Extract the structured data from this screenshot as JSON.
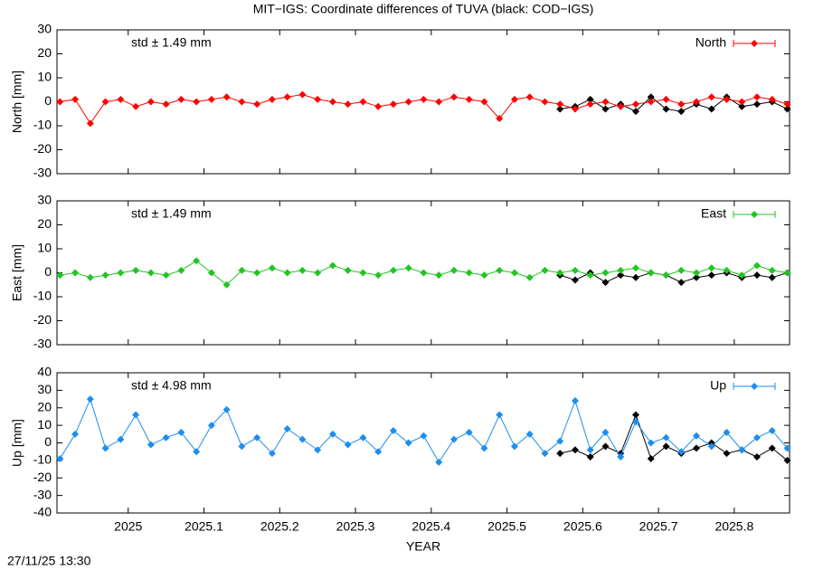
{
  "title": "MIT−IGS: Coordinate differences of TUVA (black: COD−IGS)",
  "timestamp": "27/11/25 13:30",
  "chart_data": [
    {
      "type": "line",
      "ylabel": "North [mm]",
      "annotation": "std ± 1.49 mm",
      "xlim": [
        2024.906,
        2025.873
      ],
      "xticks": [
        2025,
        2025.1,
        2025.2,
        2025.3,
        2025.4,
        2025.5,
        2025.6,
        2025.7,
        2025.8
      ],
      "ylim": [
        -30,
        30
      ],
      "yticks": [
        -30,
        -20,
        -10,
        0,
        10,
        20,
        30
      ],
      "legend": "top right",
      "series": [
        {
          "color": "#000000",
          "x": [
            2025.57,
            2025.59,
            2025.61,
            2025.63,
            2025.65,
            2025.67,
            2025.69,
            2025.71,
            2025.73,
            2025.75,
            2025.77,
            2025.79,
            2025.81,
            2025.83,
            2025.85,
            2025.87
          ],
          "values": [
            -3,
            -2,
            1,
            -3,
            -1,
            -4,
            2,
            -3,
            -4,
            -1,
            -3,
            2,
            -2,
            -1,
            0,
            -3
          ]
        },
        {
          "name": "North",
          "color": "#ff0000",
          "x": [
            2024.91,
            2024.93,
            2024.95,
            2024.97,
            2024.99,
            2025.01,
            2025.03,
            2025.05,
            2025.07,
            2025.09,
            2025.11,
            2025.13,
            2025.15,
            2025.17,
            2025.19,
            2025.21,
            2025.23,
            2025.25,
            2025.27,
            2025.29,
            2025.31,
            2025.33,
            2025.35,
            2025.37,
            2025.39,
            2025.41,
            2025.43,
            2025.45,
            2025.47,
            2025.49,
            2025.51,
            2025.53,
            2025.55,
            2025.57,
            2025.59,
            2025.61,
            2025.63,
            2025.65,
            2025.67,
            2025.69,
            2025.71,
            2025.73,
            2025.75,
            2025.77,
            2025.79,
            2025.81,
            2025.83,
            2025.85,
            2025.87
          ],
          "values": [
            0,
            1,
            -9,
            0,
            1,
            -2,
            0,
            -1,
            1,
            0,
            1,
            2,
            0,
            -1,
            1,
            2,
            3,
            1,
            0,
            -1,
            0,
            -2,
            -1,
            0,
            1,
            0,
            2,
            1,
            0,
            -7,
            1,
            2,
            0,
            -1,
            -3,
            -1,
            0,
            -2,
            -1,
            0,
            1,
            -1,
            0,
            2,
            1,
            0,
            2,
            1,
            -1
          ]
        }
      ]
    },
    {
      "type": "line",
      "ylabel": "East [mm]",
      "annotation": "std ± 1.49 mm",
      "xlim": [
        2024.906,
        2025.873
      ],
      "xticks": [
        2025,
        2025.1,
        2025.2,
        2025.3,
        2025.4,
        2025.5,
        2025.6,
        2025.7,
        2025.8
      ],
      "ylim": [
        -30,
        30
      ],
      "yticks": [
        -30,
        -20,
        -10,
        0,
        10,
        20,
        30
      ],
      "legend": "top right",
      "series": [
        {
          "color": "#000000",
          "x": [
            2025.57,
            2025.59,
            2025.61,
            2025.63,
            2025.65,
            2025.67,
            2025.69,
            2025.71,
            2025.73,
            2025.75,
            2025.77,
            2025.79,
            2025.81,
            2025.83,
            2025.85,
            2025.87
          ],
          "values": [
            -1,
            -3,
            0,
            -4,
            -1,
            -2,
            0,
            -1,
            -4,
            -2,
            -1,
            0,
            -2,
            -1,
            -2,
            0
          ]
        },
        {
          "name": "East",
          "color": "#22c422",
          "x": [
            2024.91,
            2024.93,
            2024.95,
            2024.97,
            2024.99,
            2025.01,
            2025.03,
            2025.05,
            2025.07,
            2025.09,
            2025.11,
            2025.13,
            2025.15,
            2025.17,
            2025.19,
            2025.21,
            2025.23,
            2025.25,
            2025.27,
            2025.29,
            2025.31,
            2025.33,
            2025.35,
            2025.37,
            2025.39,
            2025.41,
            2025.43,
            2025.45,
            2025.47,
            2025.49,
            2025.51,
            2025.53,
            2025.55,
            2025.57,
            2025.59,
            2025.61,
            2025.63,
            2025.65,
            2025.67,
            2025.69,
            2025.71,
            2025.73,
            2025.75,
            2025.77,
            2025.79,
            2025.81,
            2025.83,
            2025.85,
            2025.87
          ],
          "values": [
            -1,
            0,
            -2,
            -1,
            0,
            1,
            0,
            -1,
            1,
            5,
            0,
            -5,
            1,
            0,
            2,
            0,
            1,
            0,
            3,
            1,
            0,
            -1,
            1,
            2,
            0,
            -1,
            1,
            0,
            -1,
            1,
            0,
            -2,
            1,
            0,
            1,
            -1,
            0,
            1,
            2,
            0,
            -1,
            1,
            0,
            2,
            1,
            -1,
            3,
            1,
            0
          ]
        }
      ]
    },
    {
      "type": "line",
      "ylabel": "Up [mm]",
      "annotation": "std ± 4.98 mm",
      "xlabel": "YEAR",
      "xlim": [
        2024.906,
        2025.873
      ],
      "xticks": [
        2025,
        2025.1,
        2025.2,
        2025.3,
        2025.4,
        2025.5,
        2025.6,
        2025.7,
        2025.8
      ],
      "ylim": [
        -40,
        40
      ],
      "yticks": [
        -40,
        -30,
        -20,
        -10,
        0,
        10,
        20,
        30,
        40
      ],
      "legend": "top right",
      "series": [
        {
          "color": "#000000",
          "x": [
            2025.57,
            2025.59,
            2025.61,
            2025.63,
            2025.65,
            2025.67,
            2025.69,
            2025.71,
            2025.73,
            2025.75,
            2025.77,
            2025.79,
            2025.81,
            2025.83,
            2025.85,
            2025.87
          ],
          "values": [
            -6,
            -4,
            -8,
            -2,
            -6,
            16,
            -9,
            -2,
            -6,
            -3,
            0,
            -6,
            -4,
            -8,
            -3,
            -10
          ]
        },
        {
          "name": "Up",
          "color": "#1b8ef0",
          "x": [
            2024.91,
            2024.93,
            2024.95,
            2024.97,
            2024.99,
            2025.01,
            2025.03,
            2025.05,
            2025.07,
            2025.09,
            2025.11,
            2025.13,
            2025.15,
            2025.17,
            2025.19,
            2025.21,
            2025.23,
            2025.25,
            2025.27,
            2025.29,
            2025.31,
            2025.33,
            2025.35,
            2025.37,
            2025.39,
            2025.41,
            2025.43,
            2025.45,
            2025.47,
            2025.49,
            2025.51,
            2025.53,
            2025.55,
            2025.57,
            2025.59,
            2025.61,
            2025.63,
            2025.65,
            2025.67,
            2025.69,
            2025.71,
            2025.73,
            2025.75,
            2025.77,
            2025.79,
            2025.81,
            2025.83,
            2025.85,
            2025.87
          ],
          "values": [
            -9,
            5,
            25,
            -3,
            2,
            16,
            -1,
            3,
            6,
            -5,
            10,
            19,
            -2,
            3,
            -6,
            8,
            2,
            -4,
            5,
            -1,
            3,
            -5,
            7,
            0,
            4,
            -11,
            2,
            6,
            -3,
            16,
            -2,
            5,
            -6,
            1,
            24,
            -4,
            6,
            -8,
            12,
            0,
            3,
            -5,
            4,
            -2,
            6,
            -4,
            3,
            7,
            -3
          ]
        }
      ]
    }
  ]
}
